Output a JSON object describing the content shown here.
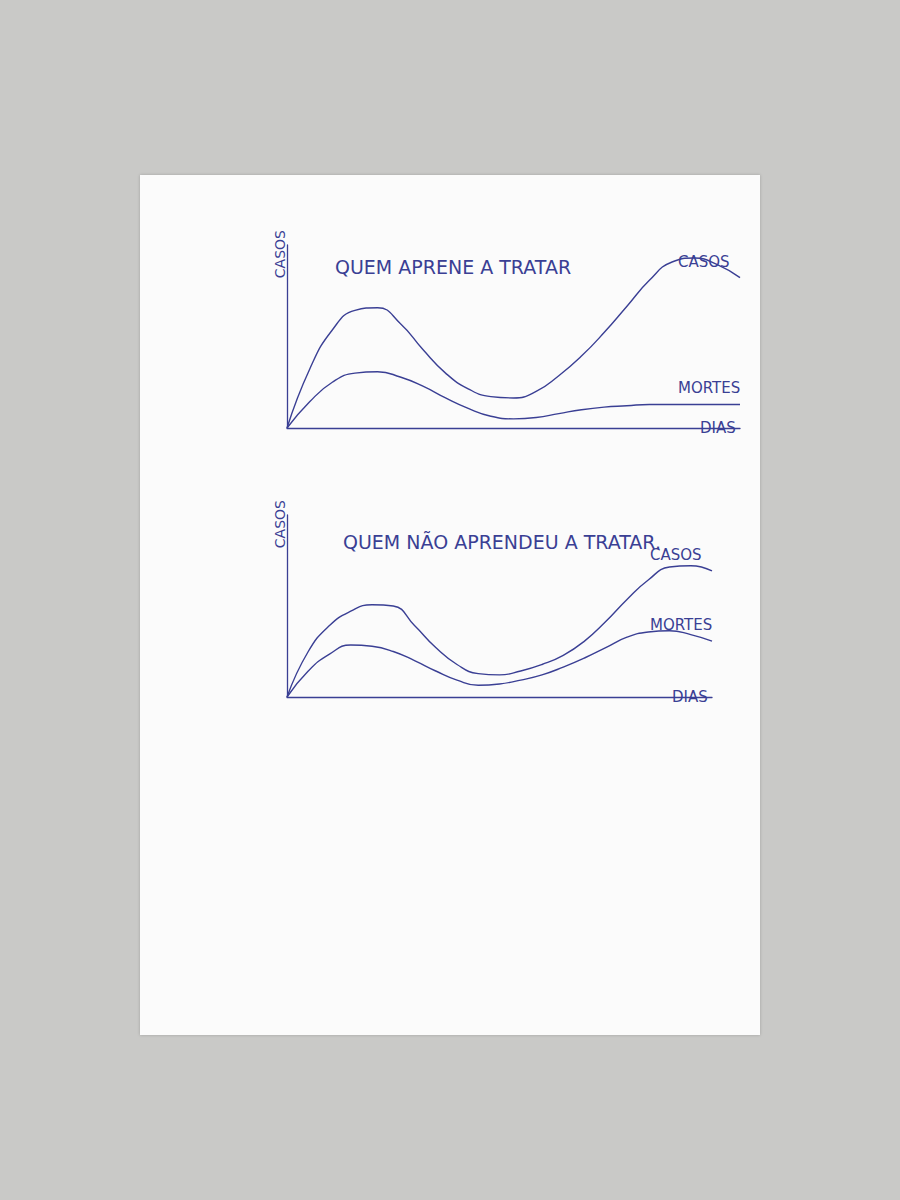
{
  "chart_data": [
    {
      "type": "line",
      "title": "QUEM APRENE A TRATAR",
      "xlabel": "DIAS",
      "ylabel": "CASOS",
      "x": [
        0,
        1,
        2,
        3,
        4,
        5,
        6,
        7,
        8,
        9,
        10,
        11,
        12,
        13,
        14,
        15,
        16,
        17,
        18,
        19,
        20
      ],
      "xlim": [
        0,
        20
      ],
      "ylim": [
        0,
        14
      ],
      "grid": false,
      "tick_labels": false,
      "series": [
        {
          "name": "CASOS",
          "color": "#3a3f94",
          "values": [
            0,
            4.5,
            7.5,
            9,
            9.2,
            8,
            6,
            4.2,
            3,
            2.4,
            2.3,
            2.8,
            4,
            5.5,
            7.3,
            9.3,
            11.3,
            12.7,
            13,
            12.5,
            11.5
          ]
        },
        {
          "name": "MORTES",
          "color": "#3a3f94",
          "values": [
            0,
            2,
            3.5,
            4.2,
            4.3,
            3.9,
            3.2,
            2.3,
            1.5,
            0.9,
            0.7,
            0.8,
            1.1,
            1.4,
            1.6,
            1.7,
            1.8,
            1.8,
            1.8,
            1.8,
            1.8
          ]
        }
      ]
    },
    {
      "type": "line",
      "title": "QUEM NÃO APRENDEU A TRATAR.",
      "xlabel": "DIAS",
      "ylabel": "CASOS",
      "x": [
        0,
        1,
        2,
        3,
        4,
        5,
        6,
        7,
        8,
        9,
        10,
        11,
        12,
        13,
        14,
        15,
        16,
        17,
        18,
        19,
        20
      ],
      "xlim": [
        0,
        20
      ],
      "ylim": [
        0,
        14
      ],
      "grid": false,
      "tick_labels": false,
      "series": [
        {
          "name": "CASOS",
          "color": "#3a3f94",
          "values": [
            0,
            3.5,
            5.5,
            6.6,
            7.1,
            7,
            5.5,
            3.8,
            2.5,
            1.8,
            1.7,
            2,
            2.5,
            3.2,
            4.3,
            5.8,
            7.5,
            9,
            10,
            10.1,
            9.7
          ]
        },
        {
          "name": "MORTES",
          "color": "#3a3f94",
          "values": [
            0,
            2,
            3.3,
            4,
            3.9,
            3.5,
            2.8,
            2,
            1.3,
            0.9,
            1,
            1.3,
            1.7,
            2.3,
            3,
            3.8,
            4.6,
            5,
            5.1,
            4.8,
            4.3
          ]
        }
      ]
    }
  ]
}
